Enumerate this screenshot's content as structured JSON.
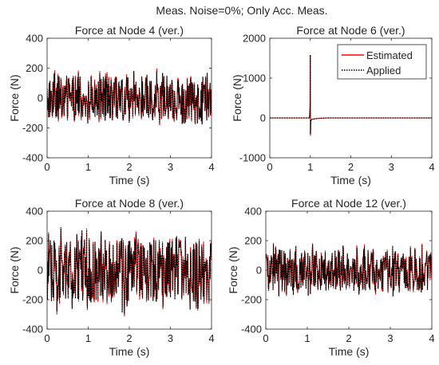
{
  "figure": {
    "title": "Meas. Noise=0%; Only Acc. Meas.",
    "series_colors": {
      "estimated": "#ff0000",
      "applied": "#000000"
    },
    "legend": {
      "location": "top-right",
      "entries": [
        "Estimated",
        "Applied"
      ]
    }
  },
  "chart_data": [
    {
      "type": "line",
      "title": "Force at Node 4 (ver.)",
      "xlabel": "Time (s)",
      "ylabel": "Force (N)",
      "xlim": [
        0,
        4
      ],
      "ylim": [
        -400,
        400
      ],
      "xticks": [
        0,
        1,
        2,
        3,
        4
      ],
      "yticks": [
        -400,
        -200,
        0,
        200,
        400
      ],
      "grid": false,
      "signal": {
        "kind": "random-noise",
        "typical_peak": 150,
        "max_peak": 180
      },
      "series": [
        {
          "name": "Estimated",
          "color": "#ff0000"
        },
        {
          "name": "Applied",
          "color": "#000000",
          "style": "dotted"
        }
      ]
    },
    {
      "type": "line",
      "title": "Force at Node 6 (ver.)",
      "xlabel": "Time (s)",
      "ylabel": "Force (N)",
      "xlim": [
        0,
        4
      ],
      "ylim": [
        -1000,
        2000
      ],
      "xticks": [
        0,
        1,
        2,
        3,
        4
      ],
      "yticks": [
        -1000,
        0,
        1000,
        2000
      ],
      "grid": false,
      "legend": {
        "location": "top-right",
        "entries": [
          "Estimated",
          "Applied"
        ]
      },
      "signal": {
        "kind": "impulse",
        "baseline": 0,
        "impulse_time": 1.0,
        "peak": 1580,
        "undershoot": -450
      },
      "series": [
        {
          "name": "Estimated",
          "color": "#ff0000"
        },
        {
          "name": "Applied",
          "color": "#000000",
          "style": "dotted"
        }
      ]
    },
    {
      "type": "line",
      "title": "Force at Node 8 (ver.)",
      "xlabel": "Time (s)",
      "ylabel": "Force (N)",
      "xlim": [
        0,
        4
      ],
      "ylim": [
        -400,
        400
      ],
      "xticks": [
        0,
        1,
        2,
        3,
        4
      ],
      "yticks": [
        -400,
        -200,
        0,
        200,
        400
      ],
      "grid": false,
      "signal": {
        "kind": "random-noise",
        "typical_peak": 220,
        "max_peak": 300
      },
      "series": [
        {
          "name": "Estimated",
          "color": "#ff0000"
        },
        {
          "name": "Applied",
          "color": "#000000",
          "style": "dotted"
        }
      ]
    },
    {
      "type": "line",
      "title": "Force at Node 12 (ver.)",
      "xlabel": "Time (s)",
      "ylabel": "Force (N)",
      "xlim": [
        0,
        4
      ],
      "ylim": [
        -400,
        400
      ],
      "xticks": [
        0,
        1,
        2,
        3,
        4
      ],
      "yticks": [
        -400,
        -200,
        0,
        200,
        400
      ],
      "grid": false,
      "signal": {
        "kind": "random-noise",
        "typical_peak": 140,
        "max_peak": 180
      },
      "series": [
        {
          "name": "Estimated",
          "color": "#ff0000"
        },
        {
          "name": "Applied",
          "color": "#000000",
          "style": "dotted"
        }
      ]
    }
  ]
}
